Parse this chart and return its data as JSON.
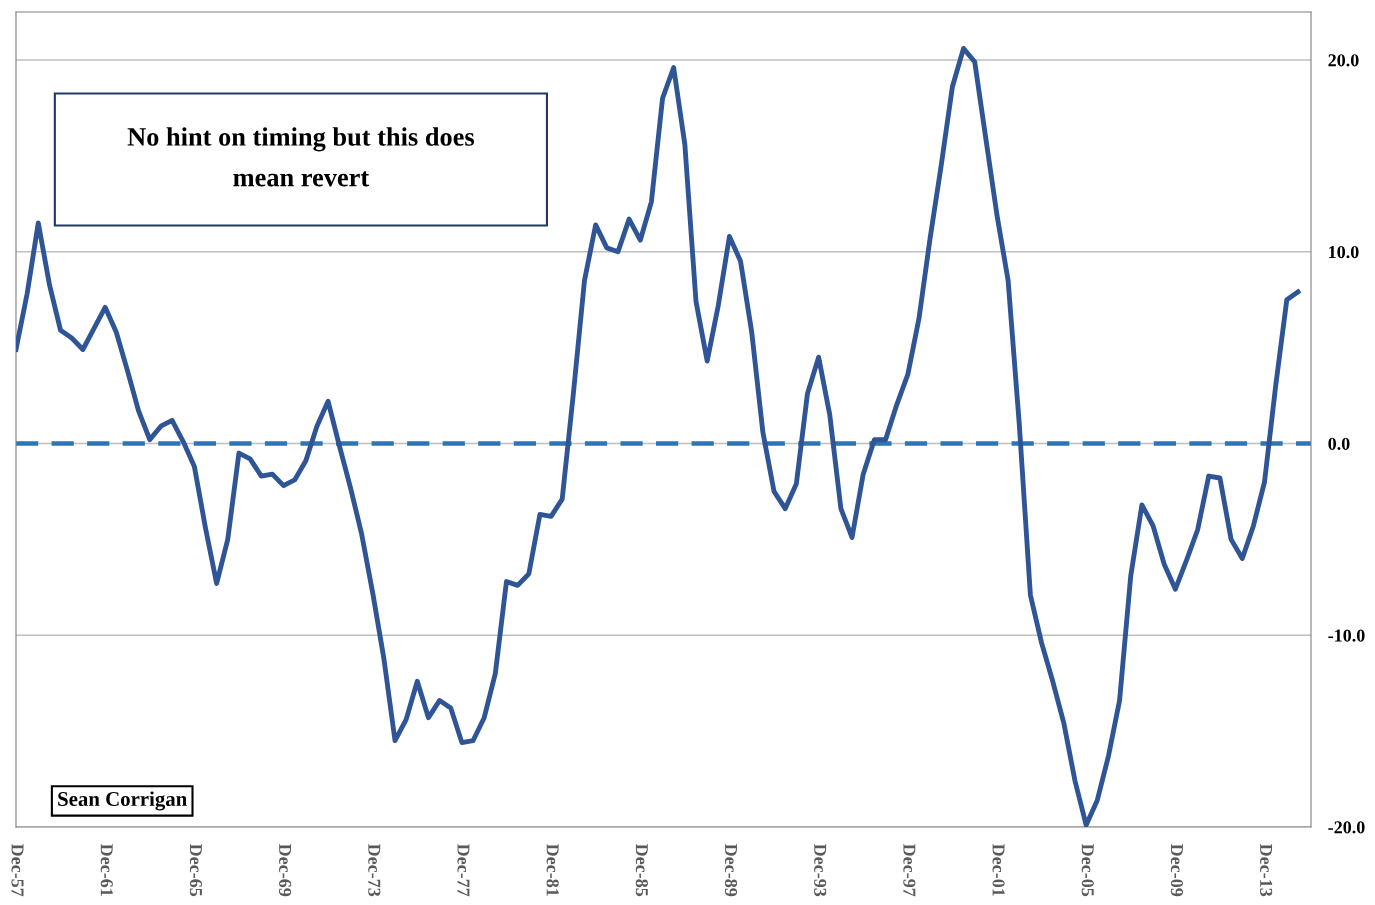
{
  "chart_data": {
    "type": "line",
    "annotations": [
      "No hint on timing but this does\nmean revert",
      "Sean Corrigan"
    ],
    "x": [
      "1957-12",
      "1958-06",
      "1958-12",
      "1959-06",
      "1959-12",
      "1960-06",
      "1960-12",
      "1961-06",
      "1961-12",
      "1962-06",
      "1962-12",
      "1963-06",
      "1963-12",
      "1964-06",
      "1964-12",
      "1965-06",
      "1965-12",
      "1966-06",
      "1966-12",
      "1967-06",
      "1967-12",
      "1968-06",
      "1968-12",
      "1969-06",
      "1969-12",
      "1970-06",
      "1970-12",
      "1971-06",
      "1971-12",
      "1972-06",
      "1972-12",
      "1973-06",
      "1973-12",
      "1974-06",
      "1974-12",
      "1975-06",
      "1975-12",
      "1976-06",
      "1976-12",
      "1977-06",
      "1977-12",
      "1978-06",
      "1978-12",
      "1979-06",
      "1979-12",
      "1980-06",
      "1980-12",
      "1981-06",
      "1981-12",
      "1982-06",
      "1982-12",
      "1983-06",
      "1983-12",
      "1984-06",
      "1984-12",
      "1985-06",
      "1985-12",
      "1986-06",
      "1986-12",
      "1987-06",
      "1987-12",
      "1988-06",
      "1988-12",
      "1989-06",
      "1989-12",
      "1990-06",
      "1990-12",
      "1991-06",
      "1991-12",
      "1992-06",
      "1992-12",
      "1993-06",
      "1993-12",
      "1994-06",
      "1994-12",
      "1995-06",
      "1995-12",
      "1996-06",
      "1996-12",
      "1997-06",
      "1997-12",
      "1998-06",
      "1998-12",
      "1999-06",
      "1999-12",
      "2000-06",
      "2000-12",
      "2001-06",
      "2001-12",
      "2002-06",
      "2002-12",
      "2003-06",
      "2003-12",
      "2004-06",
      "2004-12",
      "2005-06",
      "2005-12",
      "2006-06",
      "2006-12",
      "2007-06",
      "2007-12",
      "2008-06",
      "2008-12",
      "2009-06",
      "2009-12",
      "2010-06",
      "2010-12",
      "2011-06",
      "2011-12",
      "2012-06",
      "2012-12",
      "2013-06",
      "2013-12",
      "2014-06",
      "2014-12",
      "2015-06"
    ],
    "series": [
      {
        "color": "#2f5597",
        "values": [
          4.9,
          7.8,
          11.5,
          8.3,
          5.9,
          5.5,
          4.9,
          6.0,
          7.1,
          5.8,
          3.8,
          1.7,
          0.2,
          0.9,
          1.2,
          0.1,
          -1.2,
          -4.4,
          -7.3,
          -5.0,
          -0.5,
          -0.8,
          -1.7,
          -1.6,
          -2.2,
          -1.9,
          -0.9,
          0.9,
          2.2,
          -0.1,
          -2.3,
          -4.7,
          -7.8,
          -11.2,
          -15.5,
          -14.4,
          -12.4,
          -14.3,
          -13.4,
          -13.8,
          -15.6,
          -15.5,
          -14.3,
          -12.0,
          -7.2,
          -7.4,
          -6.8,
          -3.7,
          -3.8,
          -2.9,
          2.6,
          8.5,
          11.4,
          10.2,
          10.0,
          11.7,
          10.6,
          12.6,
          18.0,
          19.6,
          15.6,
          7.4,
          4.3,
          7.2,
          10.8,
          9.5,
          5.8,
          0.6,
          -2.5,
          -3.4,
          -2.1,
          2.6,
          4.5,
          1.5,
          -3.4,
          -4.9,
          -1.6,
          0.2,
          0.2,
          2.0,
          3.6,
          6.5,
          10.7,
          14.5,
          18.6,
          20.6,
          19.9,
          15.9,
          11.9,
          8.5,
          1.0,
          -7.9,
          -10.4,
          -12.4,
          -14.6,
          -17.6,
          -19.9,
          -18.6,
          -16.3,
          -13.4,
          -6.9,
          -3.2,
          -4.3,
          -6.3,
          -7.6,
          -6.1,
          -4.5,
          -1.7,
          -1.8,
          -5.0,
          -6.0,
          -4.3,
          -2.0,
          3.0,
          7.5,
          7.9
        ]
      }
    ],
    "xlim": [
      "1957-12",
      "2016-01"
    ],
    "xticks": [
      {
        "value": "1957-12",
        "label": "Dec-57"
      },
      {
        "value": "1961-12",
        "label": "Dec-61"
      },
      {
        "value": "1965-12",
        "label": "Dec-65"
      },
      {
        "value": "1969-12",
        "label": "Dec-69"
      },
      {
        "value": "1973-12",
        "label": "Dec-73"
      },
      {
        "value": "1977-12",
        "label": "Dec-77"
      },
      {
        "value": "1981-12",
        "label": "Dec-81"
      },
      {
        "value": "1985-12",
        "label": "Dec-85"
      },
      {
        "value": "1989-12",
        "label": "Dec-89"
      },
      {
        "value": "1993-12",
        "label": "Dec-93"
      },
      {
        "value": "1997-12",
        "label": "Dec-97"
      },
      {
        "value": "2001-12",
        "label": "Dec-01"
      },
      {
        "value": "2005-12",
        "label": "Dec-05"
      },
      {
        "value": "2009-12",
        "label": "Dec-09"
      },
      {
        "value": "2013-12",
        "label": "Dec-13"
      }
    ],
    "ylim": [
      -20,
      22.5
    ],
    "yticks": [
      {
        "value": -20,
        "label": "-20.0"
      },
      {
        "value": -10,
        "label": "-10.0"
      },
      {
        "value": 0,
        "label": "0.0"
      },
      {
        "value": 10,
        "label": "10.0"
      },
      {
        "value": 20,
        "label": "20.0"
      }
    ],
    "ref_lines": [
      {
        "axis": "y",
        "value": 0,
        "color": "#2e75b6",
        "line_style": "dashed"
      }
    ],
    "grid": "y",
    "line_style": "solid",
    "marker": "none"
  }
}
